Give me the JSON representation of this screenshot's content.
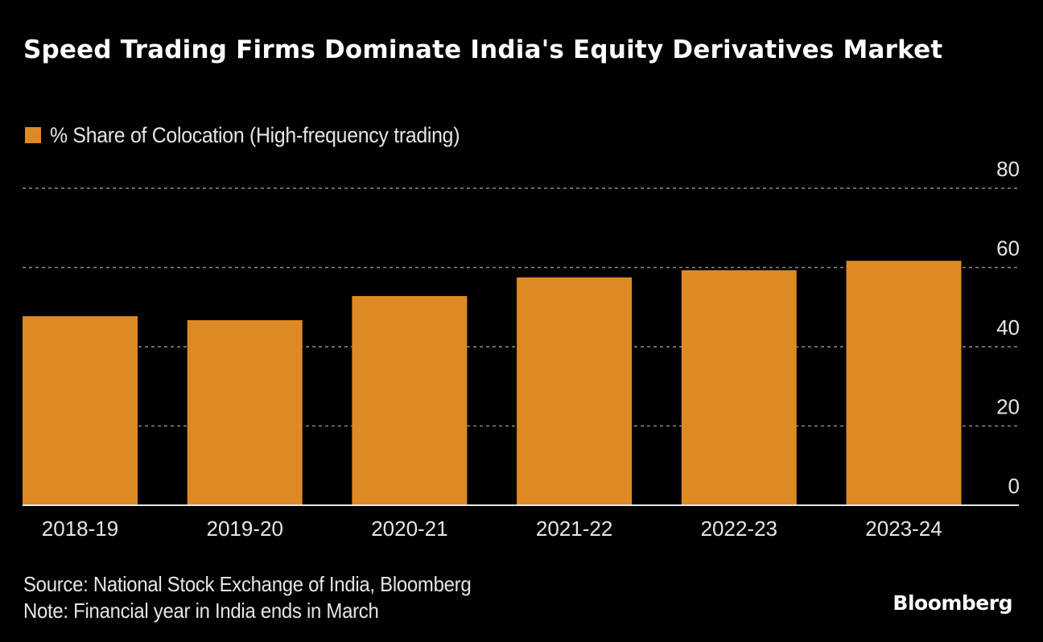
{
  "chart_data": {
    "type": "bar",
    "title": "Speed Trading Firms Dominate India's Equity Derivatives Market",
    "legend": [
      "% Share of Colocation (High-frequency trading)"
    ],
    "legend_placement": "top-left",
    "categories": [
      "2018-19",
      "2019-20",
      "2020-21",
      "2021-22",
      "2022-23",
      "2023-24"
    ],
    "series": [
      {
        "name": "% Share of Colocation (High-frequency trading)",
        "values": [
          47.7,
          46.7,
          52.8,
          57.5,
          59.3,
          61.7
        ],
        "color": "#dd8a26"
      }
    ],
    "xlabel": "",
    "ylabel": "",
    "ylim": [
      0,
      80
    ],
    "yticks": [
      0,
      20,
      40,
      60,
      80
    ],
    "ytick_labels": [
      "0",
      "20",
      "40",
      "60",
      "80"
    ],
    "y_axis_side": "right",
    "grid": true
  },
  "footer": {
    "source": "Source: National Stock Exchange of India, Bloomberg",
    "note": "Note: Financial year in India ends in March"
  },
  "brand": "Bloomberg",
  "colors": {
    "background": "#000000",
    "bar": "#dd8a26",
    "grid": "#8a8a8a",
    "axis": "#e6e6e6",
    "text": "#e6e6e6"
  }
}
